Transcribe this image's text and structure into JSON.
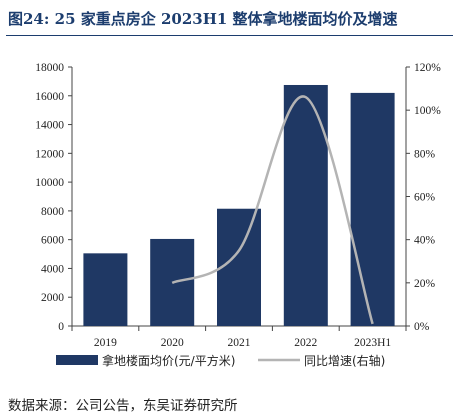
{
  "title": "图24:  25 家重点房企 2023H1 整体拿地楼面均价及增速",
  "source": "数据来源：公司公告，东吴证券研究所",
  "chart_data": {
    "type": "bar",
    "categories": [
      "2019",
      "2020",
      "2021",
      "2022",
      "2023H1"
    ],
    "series": [
      {
        "name": "拿地楼面均价(元/平方米)",
        "type": "bar",
        "axis": "left",
        "color": "#1f3864",
        "values": [
          5050,
          6050,
          8150,
          16750,
          16200
        ]
      },
      {
        "name": "同比增速(右轴)",
        "type": "line",
        "axis": "right",
        "color": "#b4b4b4",
        "values": [
          null,
          20,
          35,
          106,
          1
        ]
      }
    ],
    "y_left": {
      "range": [
        0,
        18000
      ],
      "ticks": [
        0,
        2000,
        4000,
        6000,
        8000,
        10000,
        12000,
        14000,
        16000,
        18000
      ],
      "tick_labels": [
        "0",
        "2000",
        "4000",
        "6000",
        "8000",
        "10000",
        "12000",
        "14000",
        "16000",
        "18000"
      ]
    },
    "y_right": {
      "range": [
        0,
        120
      ],
      "ticks": [
        0,
        20,
        40,
        60,
        80,
        100,
        120
      ],
      "tick_labels": [
        "0%",
        "20%",
        "40%",
        "60%",
        "80%",
        "100%",
        "120%"
      ]
    },
    "grid": false,
    "legend_position": "bottom"
  }
}
